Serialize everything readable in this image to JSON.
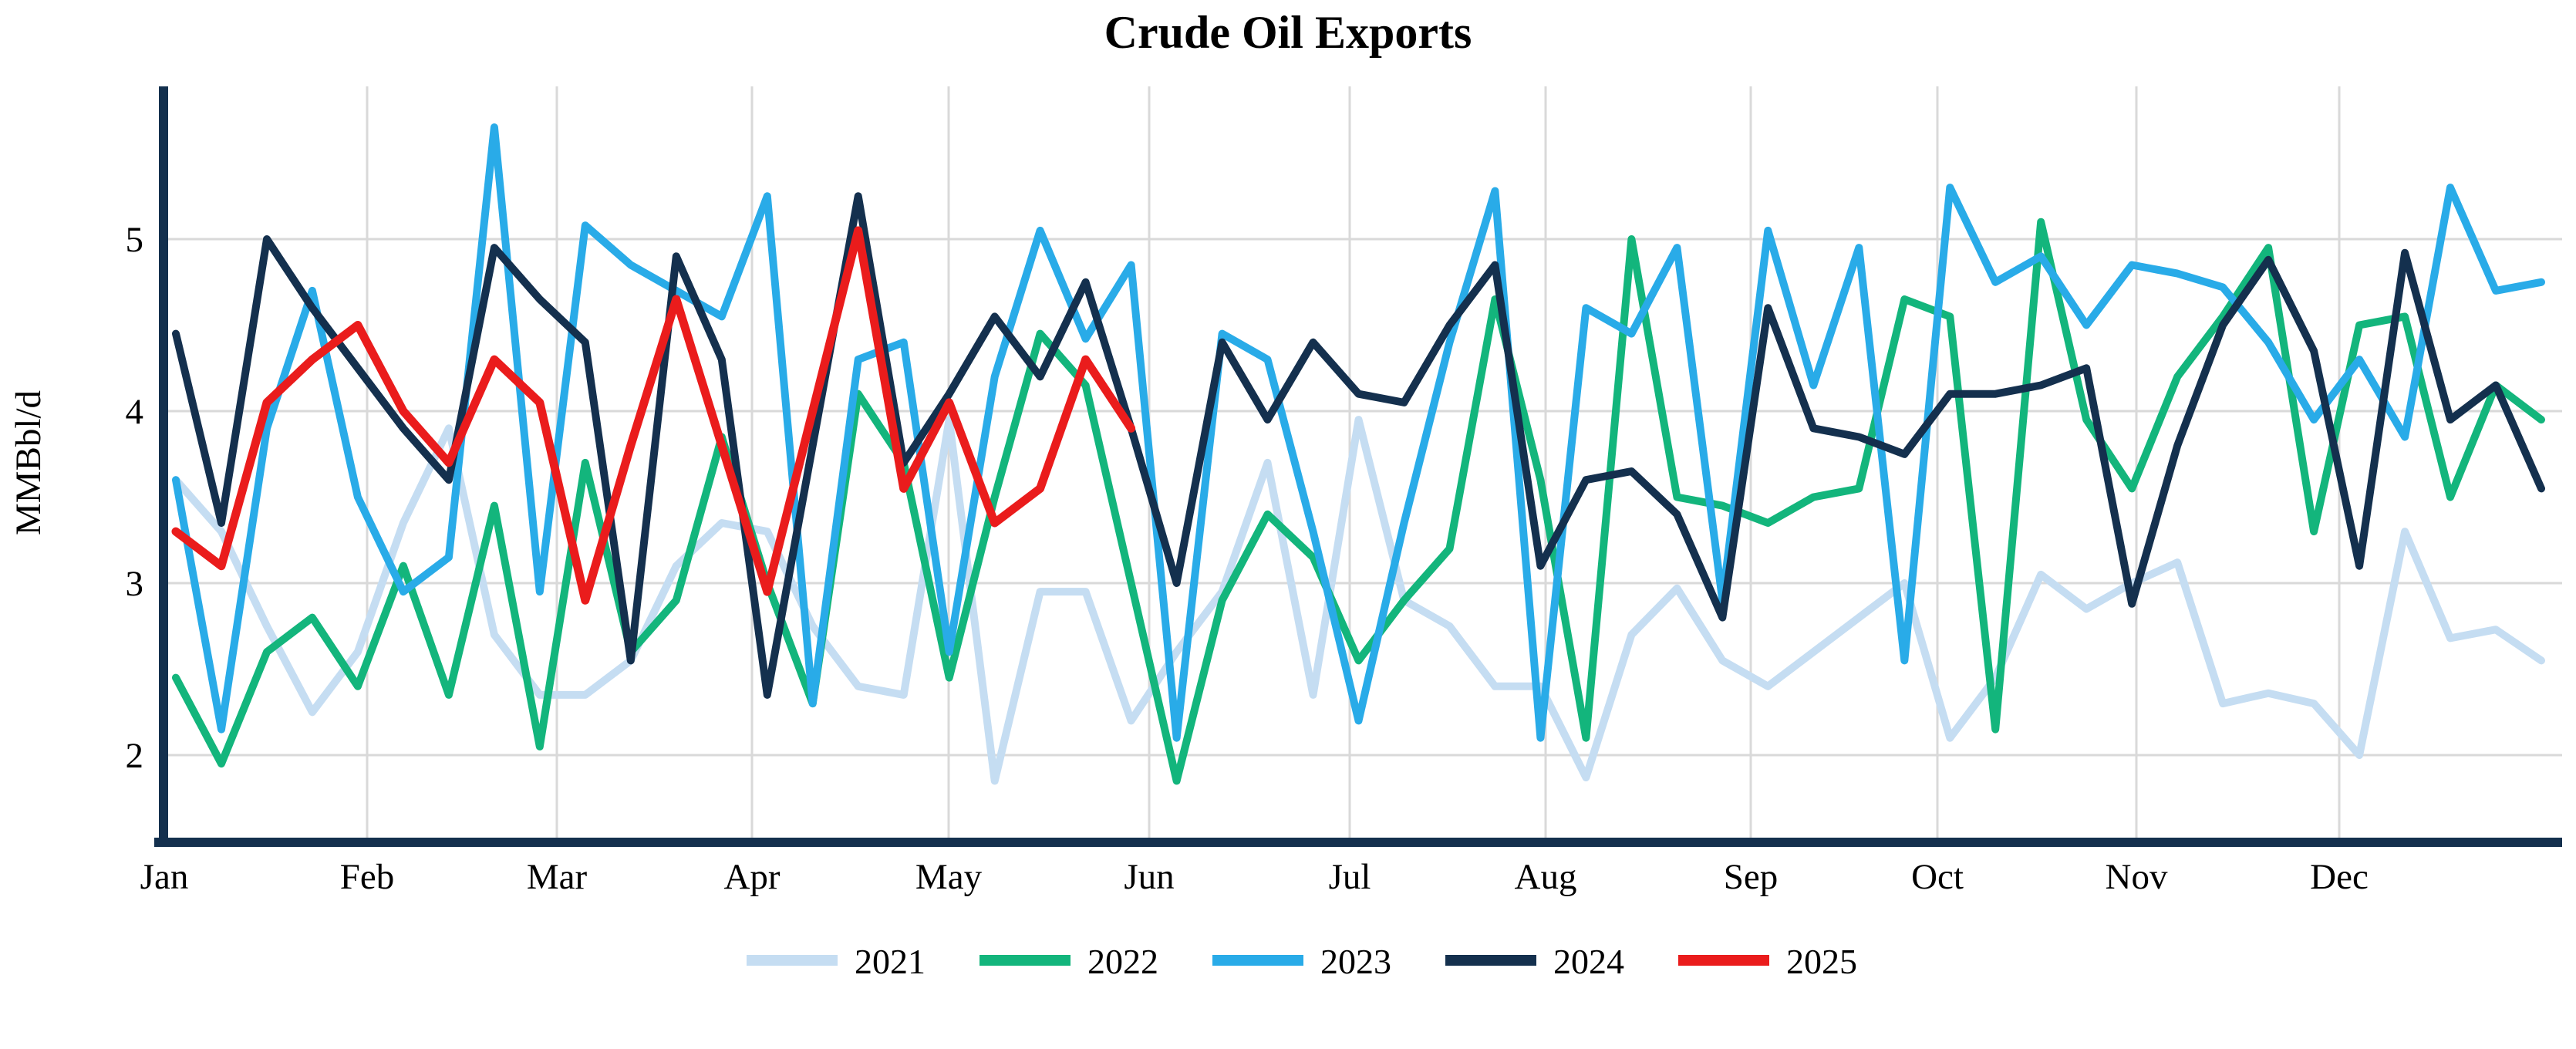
{
  "chart_data": {
    "type": "line",
    "title": "Crude Oil Exports",
    "ylabel": "MMBbl/d",
    "xlabel": "",
    "ylim": [
      1.5,
      5.9
    ],
    "y_ticks": [
      2,
      3,
      4,
      5
    ],
    "x_tick_labels": [
      "Jan",
      "Feb",
      "Mar",
      "Apr",
      "May",
      "Jun",
      "Jul",
      "Aug",
      "Sep",
      "Oct",
      "Nov",
      "Dec"
    ],
    "grid": "on",
    "legend_position": "bottom-center",
    "points_per_full_year": 53,
    "x_unit": "weekly observations, Jan through Dec",
    "series": [
      {
        "name": "2021",
        "color": "#c5ddf2",
        "values": [
          3.6,
          3.3,
          2.75,
          2.25,
          2.6,
          3.35,
          3.9,
          2.7,
          2.35,
          2.35,
          2.55,
          3.1,
          3.35,
          3.3,
          2.75,
          2.4,
          2.35,
          3.95,
          1.85,
          2.95,
          2.95,
          2.2,
          2.6,
          2.95,
          3.7,
          2.35,
          3.95,
          2.9,
          2.75,
          2.4,
          2.4,
          1.87,
          2.7,
          2.97,
          2.55,
          2.4,
          2.6,
          2.8,
          3.0,
          2.1,
          2.45,
          3.05,
          2.85,
          3.0,
          3.12,
          2.3,
          2.36,
          2.3,
          2.0,
          3.3,
          2.68,
          2.73,
          2.55
        ]
      },
      {
        "name": "2022",
        "color": "#13b57c",
        "values": [
          2.45,
          1.95,
          2.6,
          2.8,
          2.4,
          3.1,
          2.35,
          3.45,
          2.05,
          3.7,
          2.6,
          2.9,
          3.85,
          3.0,
          2.3,
          4.1,
          3.7,
          2.45,
          3.5,
          4.45,
          4.15,
          3.0,
          1.85,
          2.9,
          3.4,
          3.15,
          2.55,
          2.9,
          3.2,
          4.65,
          3.6,
          2.1,
          5.0,
          3.5,
          3.45,
          3.35,
          3.5,
          3.55,
          4.65,
          4.55,
          2.15,
          5.1,
          3.95,
          3.55,
          4.2,
          4.55,
          4.95,
          3.3,
          4.5,
          4.55,
          3.5,
          4.15,
          3.95
        ]
      },
      {
        "name": "2023",
        "color": "#29abe8",
        "values": [
          3.6,
          2.15,
          3.9,
          4.7,
          3.5,
          2.95,
          3.15,
          5.65,
          2.95,
          5.08,
          4.85,
          4.7,
          4.55,
          5.25,
          2.3,
          4.3,
          4.4,
          2.6,
          4.2,
          5.05,
          4.42,
          4.85,
          2.1,
          4.45,
          4.3,
          3.3,
          2.2,
          3.35,
          4.4,
          5.28,
          2.1,
          4.6,
          4.45,
          4.95,
          2.9,
          5.05,
          4.15,
          4.95,
          2.55,
          5.3,
          4.75,
          4.9,
          4.5,
          4.85,
          4.8,
          4.72,
          4.4,
          3.95,
          4.3,
          3.85,
          5.3,
          4.7,
          4.75
        ]
      },
      {
        "name": "2024",
        "color": "#14304e",
        "values": [
          4.45,
          3.35,
          5.0,
          4.6,
          4.25,
          3.9,
          3.6,
          4.95,
          4.65,
          4.4,
          2.55,
          4.9,
          4.3,
          2.35,
          3.8,
          5.25,
          3.7,
          4.1,
          4.55,
          4.2,
          4.75,
          3.9,
          3.0,
          4.4,
          3.95,
          4.4,
          4.1,
          4.05,
          4.5,
          4.85,
          3.1,
          3.6,
          3.65,
          3.4,
          2.8,
          4.6,
          3.9,
          3.85,
          3.75,
          4.1,
          4.1,
          4.15,
          4.25,
          2.88,
          3.8,
          4.5,
          4.88,
          4.35,
          3.1,
          4.92,
          3.95,
          4.15,
          3.55
        ]
      },
      {
        "name": "2025",
        "color": "#ea1c1c",
        "values": [
          3.3,
          3.1,
          4.05,
          4.3,
          4.5,
          4.0,
          3.7,
          4.3,
          4.05,
          2.9,
          3.8,
          4.65,
          3.8,
          2.95,
          4.0,
          5.05,
          3.55,
          4.05,
          3.35,
          3.55,
          4.3,
          3.9
        ]
      }
    ],
    "legend_entries": [
      "2021",
      "2022",
      "2023",
      "2024",
      "2025"
    ]
  },
  "header": {
    "title": "Crude Oil Exports"
  },
  "y_axis": {
    "label": "MMBbl/d",
    "ticks": [
      "5",
      "4",
      "3",
      "2"
    ]
  },
  "x_axis": {
    "ticks": [
      "Jan",
      "Feb",
      "Mar",
      "Apr",
      "May",
      "Jun",
      "Jul",
      "Aug",
      "Sep",
      "Oct",
      "Nov",
      "Dec"
    ]
  },
  "colors": {
    "axis": "#14304e",
    "grid": "#d9d9d9",
    "text": "#000000",
    "background": "#ffffff"
  }
}
